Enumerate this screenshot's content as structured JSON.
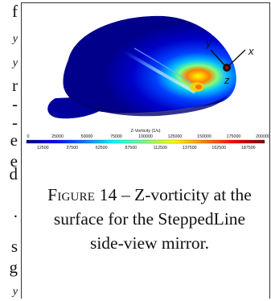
{
  "left_column": {
    "fragments": [
      "f",
      "y",
      "y",
      "r",
      "-",
      "-",
      "e",
      "e",
      "d",
      ".",
      "s",
      "g",
      "y"
    ]
  },
  "figure": {
    "axes": {
      "y_label": "y",
      "x_label": "x",
      "z_label": "z"
    },
    "colorbar": {
      "title": "Z-Vorticity (1/s)",
      "top_ticks": [
        "0",
        "25000",
        "50000",
        "75000",
        "100000",
        "125000",
        "150000",
        "175000",
        "200000"
      ],
      "bottom_ticks": [
        "12500",
        "37500",
        "62500",
        "87500",
        "112500",
        "137500",
        "162500",
        "187500"
      ],
      "range": [
        0,
        200000
      ],
      "colors": [
        "#00007f",
        "#0000ff",
        "#007fff",
        "#00ffff",
        "#7fff7f",
        "#ffff00",
        "#ff7f00",
        "#ff0000",
        "#7f0000"
      ]
    },
    "caption": {
      "lead": "Figure 14",
      "dash": " – ",
      "text": "Z-vorticity at the surface for the SteppedLine side-view mirror."
    }
  }
}
